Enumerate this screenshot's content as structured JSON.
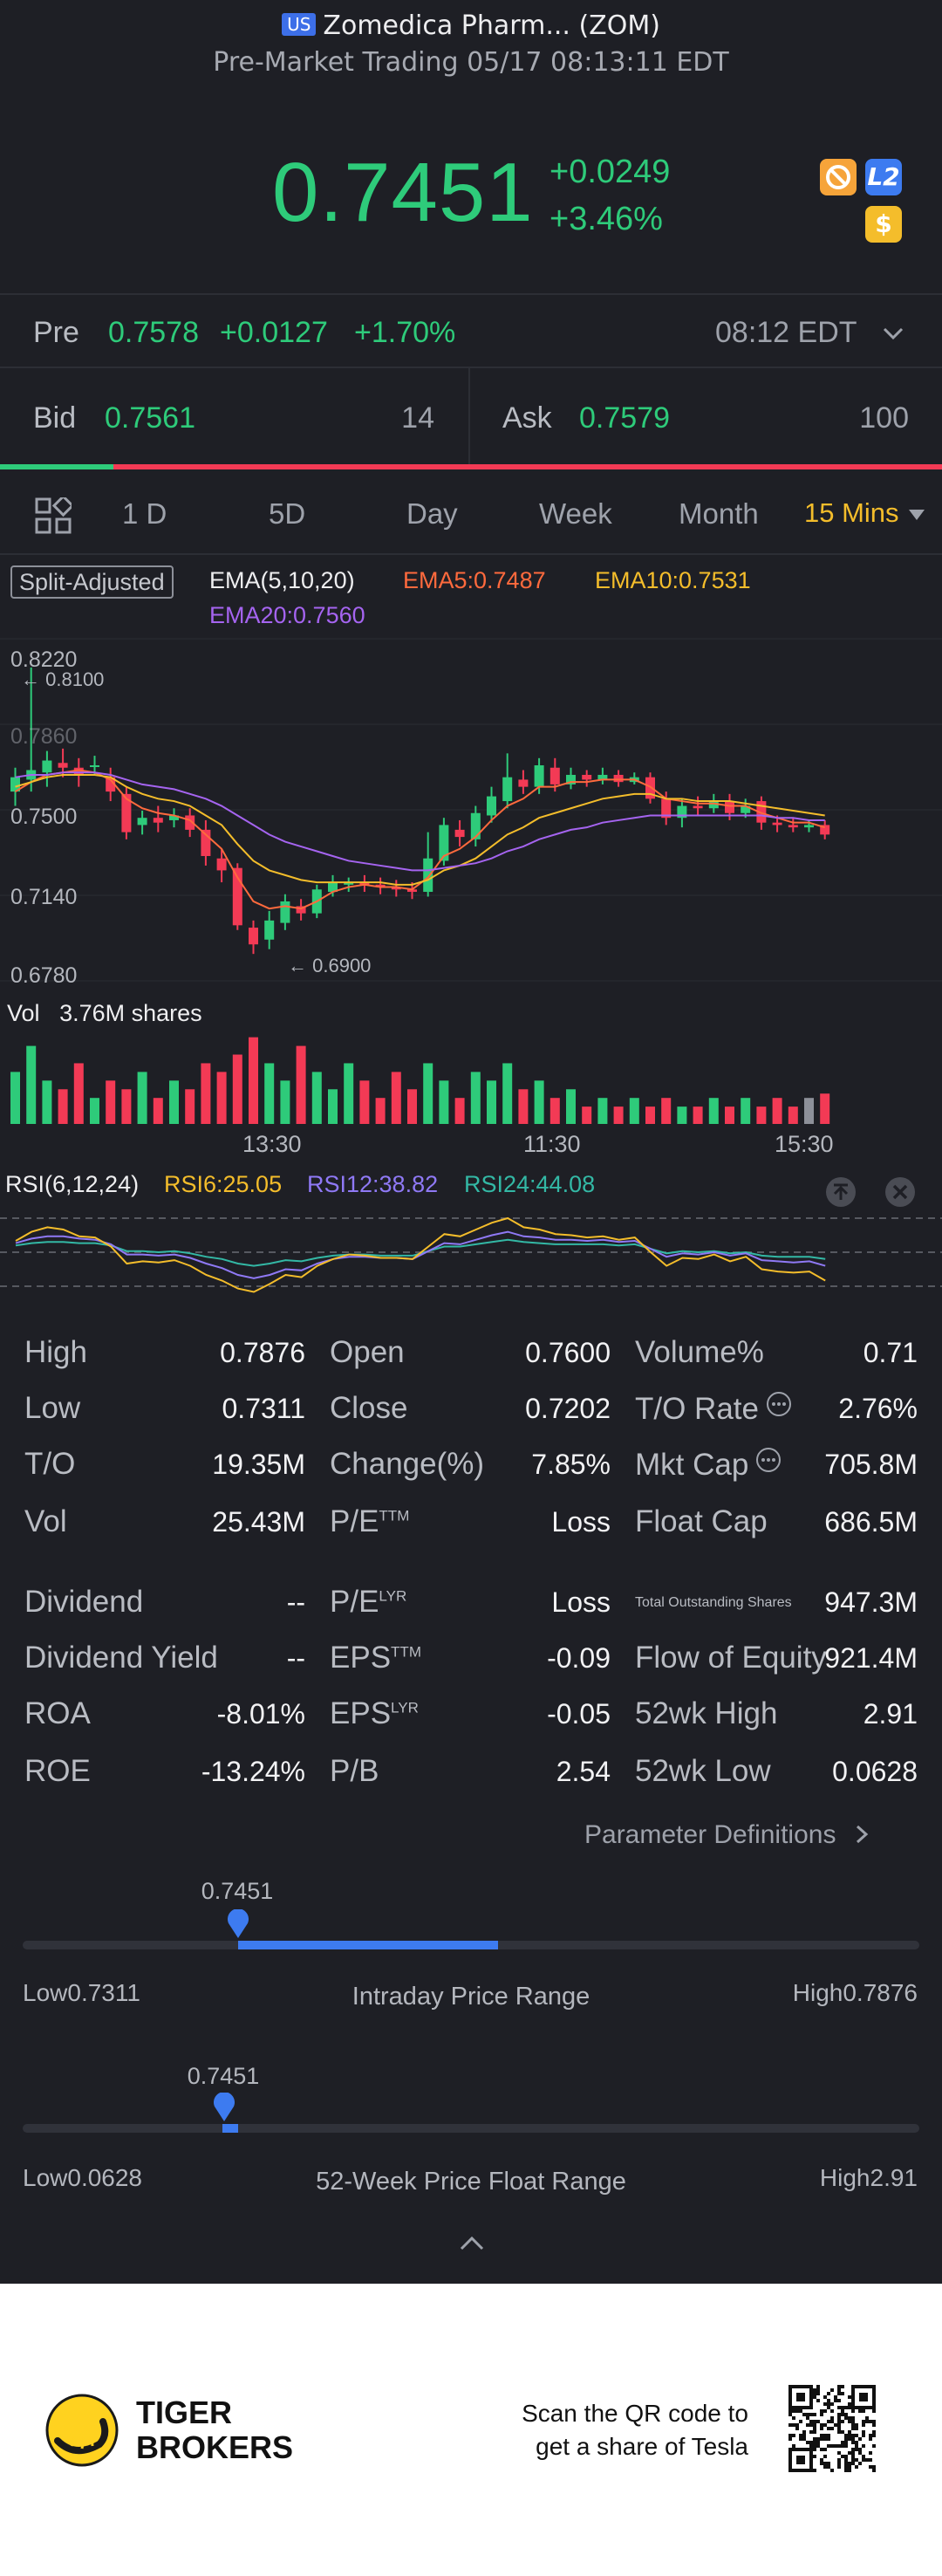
{
  "header": {
    "market_badge": "US",
    "title": "Zomedica Pharm... (ZOM)",
    "subtitle": "Pre-Market Trading 05/17 08:13:11 EDT"
  },
  "quote": {
    "price": "0.7451",
    "change": "+0.0249",
    "change_pct": "+3.46%",
    "badges": {
      "l2": "L2",
      "dollar": "$"
    }
  },
  "pre": {
    "label": "Pre",
    "price": "0.7578",
    "change": "+0.0127",
    "change_pct": "+1.70%",
    "time": "08:12 EDT"
  },
  "orderbook": {
    "bid_label": "Bid",
    "bid_price": "0.7561",
    "bid_size": "14",
    "ask_label": "Ask",
    "ask_price": "0.7579",
    "ask_size": "100",
    "bid_ratio": 0.12
  },
  "tabs": [
    "1 D",
    "5D",
    "Day",
    "Week",
    "Month",
    "15 Mins"
  ],
  "active_tab": "15 Mins",
  "indicators": {
    "split": "Split-Adjusted",
    "ema": "EMA(5,10,20)",
    "ema5": "EMA5:0.7487",
    "ema10": "EMA10:0.7531",
    "ema20": "EMA20:0.7560",
    "vol_label": "Vol",
    "vol_value": "3.76M shares",
    "rsi": "RSI(6,12,24)",
    "rsi6": "RSI6:25.05",
    "rsi12": "RSI12:38.82",
    "rsi24": "RSI24:44.08"
  },
  "colors": {
    "up": "#2ecb7a",
    "down": "#f33a55",
    "ema5": "#ff6a3d",
    "ema10": "#f4bd2b",
    "ema20": "#a564f0",
    "rsi6": "#f4bd2b",
    "rsi12": "#8f79f5",
    "rsi24": "#33b8a5",
    "accent": "#3d7bf0"
  },
  "chart_data": {
    "type": "candlestick",
    "y_ticks": [
      "0.8220",
      "0.7860",
      "0.7500",
      "0.7140",
      "0.6780"
    ],
    "ylim": [
      0.678,
      0.822
    ],
    "x_ticks": [
      "13:30",
      "11:30",
      "15:30"
    ],
    "max_marker": "0.8100",
    "min_marker": "0.6900",
    "candles": [
      {
        "o": 0.758,
        "c": 0.764,
        "h": 0.768,
        "l": 0.752
      },
      {
        "o": 0.763,
        "c": 0.767,
        "h": 0.81,
        "l": 0.758
      },
      {
        "o": 0.766,
        "c": 0.771,
        "h": 0.775,
        "l": 0.76
      },
      {
        "o": 0.77,
        "c": 0.768,
        "h": 0.776,
        "l": 0.764
      },
      {
        "o": 0.768,
        "c": 0.765,
        "h": 0.772,
        "l": 0.76
      },
      {
        "o": 0.769,
        "c": 0.769,
        "h": 0.773,
        "l": 0.765
      },
      {
        "o": 0.764,
        "c": 0.758,
        "h": 0.768,
        "l": 0.754
      },
      {
        "o": 0.757,
        "c": 0.741,
        "h": 0.76,
        "l": 0.738
      },
      {
        "o": 0.744,
        "c": 0.747,
        "h": 0.75,
        "l": 0.74
      },
      {
        "o": 0.747,
        "c": 0.745,
        "h": 0.752,
        "l": 0.741
      },
      {
        "o": 0.746,
        "c": 0.748,
        "h": 0.751,
        "l": 0.743
      },
      {
        "o": 0.748,
        "c": 0.742,
        "h": 0.751,
        "l": 0.739
      },
      {
        "o": 0.742,
        "c": 0.731,
        "h": 0.746,
        "l": 0.727
      },
      {
        "o": 0.73,
        "c": 0.725,
        "h": 0.734,
        "l": 0.72
      },
      {
        "o": 0.726,
        "c": 0.702,
        "h": 0.728,
        "l": 0.7
      },
      {
        "o": 0.701,
        "c": 0.694,
        "h": 0.704,
        "l": 0.69
      },
      {
        "o": 0.696,
        "c": 0.704,
        "h": 0.708,
        "l": 0.692
      },
      {
        "o": 0.703,
        "c": 0.712,
        "h": 0.715,
        "l": 0.7
      },
      {
        "o": 0.71,
        "c": 0.707,
        "h": 0.713,
        "l": 0.704
      },
      {
        "o": 0.707,
        "c": 0.717,
        "h": 0.719,
        "l": 0.705
      },
      {
        "o": 0.716,
        "c": 0.72,
        "h": 0.723,
        "l": 0.714
      },
      {
        "o": 0.719,
        "c": 0.72,
        "h": 0.722,
        "l": 0.716
      },
      {
        "o": 0.72,
        "c": 0.719,
        "h": 0.723,
        "l": 0.716
      },
      {
        "o": 0.719,
        "c": 0.718,
        "h": 0.722,
        "l": 0.715
      },
      {
        "o": 0.718,
        "c": 0.717,
        "h": 0.721,
        "l": 0.714
      },
      {
        "o": 0.717,
        "c": 0.716,
        "h": 0.72,
        "l": 0.713
      },
      {
        "o": 0.716,
        "c": 0.73,
        "h": 0.741,
        "l": 0.714
      },
      {
        "o": 0.729,
        "c": 0.744,
        "h": 0.747,
        "l": 0.727
      },
      {
        "o": 0.742,
        "c": 0.739,
        "h": 0.746,
        "l": 0.735
      },
      {
        "o": 0.738,
        "c": 0.749,
        "h": 0.752,
        "l": 0.735
      },
      {
        "o": 0.748,
        "c": 0.756,
        "h": 0.76,
        "l": 0.745
      },
      {
        "o": 0.754,
        "c": 0.764,
        "h": 0.774,
        "l": 0.751
      },
      {
        "o": 0.763,
        "c": 0.76,
        "h": 0.767,
        "l": 0.757
      },
      {
        "o": 0.76,
        "c": 0.769,
        "h": 0.772,
        "l": 0.757
      },
      {
        "o": 0.768,
        "c": 0.761,
        "h": 0.772,
        "l": 0.758
      },
      {
        "o": 0.761,
        "c": 0.765,
        "h": 0.768,
        "l": 0.759
      },
      {
        "o": 0.765,
        "c": 0.763,
        "h": 0.767,
        "l": 0.76
      },
      {
        "o": 0.763,
        "c": 0.765,
        "h": 0.768,
        "l": 0.761
      },
      {
        "o": 0.765,
        "c": 0.762,
        "h": 0.767,
        "l": 0.76
      },
      {
        "o": 0.762,
        "c": 0.764,
        "h": 0.766,
        "l": 0.761
      },
      {
        "o": 0.764,
        "c": 0.755,
        "h": 0.766,
        "l": 0.753
      },
      {
        "o": 0.755,
        "c": 0.747,
        "h": 0.758,
        "l": 0.744
      },
      {
        "o": 0.747,
        "c": 0.752,
        "h": 0.755,
        "l": 0.743
      },
      {
        "o": 0.752,
        "c": 0.751,
        "h": 0.756,
        "l": 0.748
      },
      {
        "o": 0.751,
        "c": 0.754,
        "h": 0.757,
        "l": 0.749
      },
      {
        "o": 0.754,
        "c": 0.749,
        "h": 0.757,
        "l": 0.746
      },
      {
        "o": 0.749,
        "c": 0.752,
        "h": 0.755,
        "l": 0.747
      },
      {
        "o": 0.754,
        "c": 0.745,
        "h": 0.756,
        "l": 0.742
      },
      {
        "o": 0.745,
        "c": 0.744,
        "h": 0.748,
        "l": 0.741
      },
      {
        "o": 0.744,
        "c": 0.743,
        "h": 0.747,
        "l": 0.741
      },
      {
        "o": 0.743,
        "c": 0.744,
        "h": 0.746,
        "l": 0.741
      },
      {
        "o": 0.744,
        "c": 0.74,
        "h": 0.746,
        "l": 0.738
      }
    ],
    "ema5": [
      0.758,
      0.762,
      0.765,
      0.766,
      0.767,
      0.766,
      0.763,
      0.755,
      0.751,
      0.749,
      0.748,
      0.746,
      0.74,
      0.734,
      0.722,
      0.712,
      0.709,
      0.71,
      0.709,
      0.712,
      0.716,
      0.718,
      0.719,
      0.718,
      0.718,
      0.717,
      0.722,
      0.731,
      0.734,
      0.739,
      0.746,
      0.752,
      0.755,
      0.76,
      0.76,
      0.762,
      0.762,
      0.763,
      0.763,
      0.763,
      0.76,
      0.755,
      0.754,
      0.753,
      0.753,
      0.752,
      0.752,
      0.749,
      0.747,
      0.745,
      0.745,
      0.743
    ],
    "ema10": [
      0.76,
      0.762,
      0.764,
      0.765,
      0.765,
      0.765,
      0.764,
      0.76,
      0.757,
      0.755,
      0.754,
      0.752,
      0.748,
      0.744,
      0.736,
      0.729,
      0.725,
      0.723,
      0.721,
      0.72,
      0.72,
      0.72,
      0.72,
      0.72,
      0.719,
      0.719,
      0.721,
      0.725,
      0.727,
      0.73,
      0.735,
      0.74,
      0.743,
      0.747,
      0.749,
      0.751,
      0.753,
      0.755,
      0.756,
      0.757,
      0.757,
      0.755,
      0.755,
      0.754,
      0.754,
      0.754,
      0.753,
      0.752,
      0.751,
      0.75,
      0.749,
      0.748
    ],
    "ema20": [
      0.764,
      0.765,
      0.765,
      0.766,
      0.766,
      0.766,
      0.765,
      0.763,
      0.761,
      0.76,
      0.759,
      0.757,
      0.755,
      0.752,
      0.748,
      0.744,
      0.74,
      0.737,
      0.735,
      0.733,
      0.731,
      0.729,
      0.728,
      0.727,
      0.726,
      0.725,
      0.725,
      0.726,
      0.727,
      0.728,
      0.73,
      0.733,
      0.735,
      0.738,
      0.74,
      0.742,
      0.743,
      0.745,
      0.746,
      0.747,
      0.748,
      0.748,
      0.748,
      0.748,
      0.748,
      0.748,
      0.748,
      0.748,
      0.747,
      0.747,
      0.746,
      0.746
    ],
    "volume": [
      0.6,
      0.9,
      0.5,
      0.4,
      0.7,
      0.3,
      0.5,
      0.4,
      0.6,
      0.3,
      0.5,
      0.4,
      0.7,
      0.6,
      0.8,
      1.0,
      0.7,
      0.5,
      0.9,
      0.6,
      0.4,
      0.7,
      0.5,
      0.3,
      0.6,
      0.4,
      0.7,
      0.5,
      0.3,
      0.6,
      0.5,
      0.7,
      0.4,
      0.5,
      0.3,
      0.4,
      0.2,
      0.3,
      0.2,
      0.3,
      0.2,
      0.3,
      0.2,
      0.2,
      0.3,
      0.2,
      0.3,
      0.2,
      0.3,
      0.2,
      0.3,
      0.35
    ],
    "rsi6": [
      60,
      68,
      72,
      70,
      64,
      63,
      55,
      40,
      42,
      41,
      43,
      38,
      30,
      25,
      18,
      15,
      22,
      30,
      28,
      38,
      44,
      48,
      47,
      45,
      45,
      44,
      55,
      66,
      64,
      70,
      76,
      80,
      72,
      70,
      66,
      65,
      63,
      64,
      61,
      63,
      50,
      38,
      45,
      44,
      48,
      42,
      46,
      35,
      33,
      32,
      33,
      25
    ],
    "rsi12": [
      58,
      62,
      64,
      64,
      62,
      61,
      57,
      48,
      48,
      47,
      48,
      45,
      40,
      36,
      30,
      27,
      30,
      35,
      34,
      40,
      44,
      46,
      46,
      45,
      45,
      44,
      51,
      58,
      57,
      61,
      65,
      68,
      64,
      63,
      61,
      61,
      60,
      61,
      59,
      60,
      53,
      46,
      49,
      48,
      50,
      47,
      49,
      43,
      42,
      41,
      42,
      38
    ],
    "rsi24": [
      56,
      58,
      59,
      59,
      58,
      58,
      56,
      51,
      51,
      50,
      51,
      49,
      46,
      44,
      40,
      38,
      40,
      43,
      42,
      45,
      47,
      48,
      48,
      47,
      47,
      47,
      51,
      55,
      55,
      57,
      59,
      61,
      59,
      58,
      57,
      57,
      57,
      57,
      56,
      57,
      53,
      49,
      51,
      50,
      51,
      49,
      50,
      47,
      46,
      46,
      46,
      44
    ],
    "rsi_levels": [
      80,
      50,
      20
    ]
  },
  "stats": [
    [
      {
        "label": "High",
        "value": "0.7876"
      },
      {
        "label": "Open",
        "value": "0.7600"
      },
      {
        "label": "Volume%",
        "value": "0.71"
      }
    ],
    [
      {
        "label": "Low",
        "value": "0.7311"
      },
      {
        "label": "Close",
        "value": "0.7202"
      },
      {
        "label": "T/O Rate",
        "value": "2.76%"
      }
    ],
    [
      {
        "label": "T/O",
        "value": "19.35M"
      },
      {
        "label": "Change(%)",
        "value": "7.85%"
      },
      {
        "label": "Mkt Cap",
        "value": "705.8M"
      }
    ],
    [
      {
        "label": "Vol",
        "value": "25.43M"
      },
      {
        "label": "P/E",
        "sup": "TTM",
        "value": "Loss"
      },
      {
        "label": "Float Cap",
        "value": "686.5M"
      }
    ],
    [
      {
        "label": "Dividend",
        "value": "--"
      },
      {
        "label": "P/E",
        "sup": "LYR",
        "value": "Loss"
      },
      {
        "label": "Total Outstanding Shares",
        "value": "947.3M"
      }
    ],
    [
      {
        "label": "Dividend Yield",
        "value": "--"
      },
      {
        "label": "EPS",
        "sup": "TTM",
        "value": "-0.09"
      },
      {
        "label": "Flow of Equity",
        "value": "921.4M"
      }
    ],
    [
      {
        "label": "ROA",
        "value": "-8.01%"
      },
      {
        "label": "EPS",
        "sup": "LYR",
        "value": "-0.05"
      },
      {
        "label": "52wk High",
        "value": "2.91"
      }
    ],
    [
      {
        "label": "ROE",
        "value": "-13.24%"
      },
      {
        "label": "P/B",
        "value": "2.54"
      },
      {
        "label": "52wk Low",
        "value": "0.0628"
      }
    ]
  ],
  "param_link": "Parameter Definitions",
  "intraday": {
    "current": "0.7451",
    "low_label": "Low0.7311",
    "title": "Intraday Price Range",
    "high_label": "High0.7876",
    "current_frac": 0.24,
    "fill_end_frac": 0.53
  },
  "week52": {
    "current": "0.7451",
    "low_label": "Low0.0628",
    "title": "52-Week Price Float Range",
    "high_label": "High2.91",
    "current_frac": 0.24
  },
  "footer": {
    "brand_line1": "TIGER",
    "brand_line2": "BROKERS",
    "cta_line1": "Scan the QR code to",
    "cta_line2": "get a share of Tesla"
  }
}
